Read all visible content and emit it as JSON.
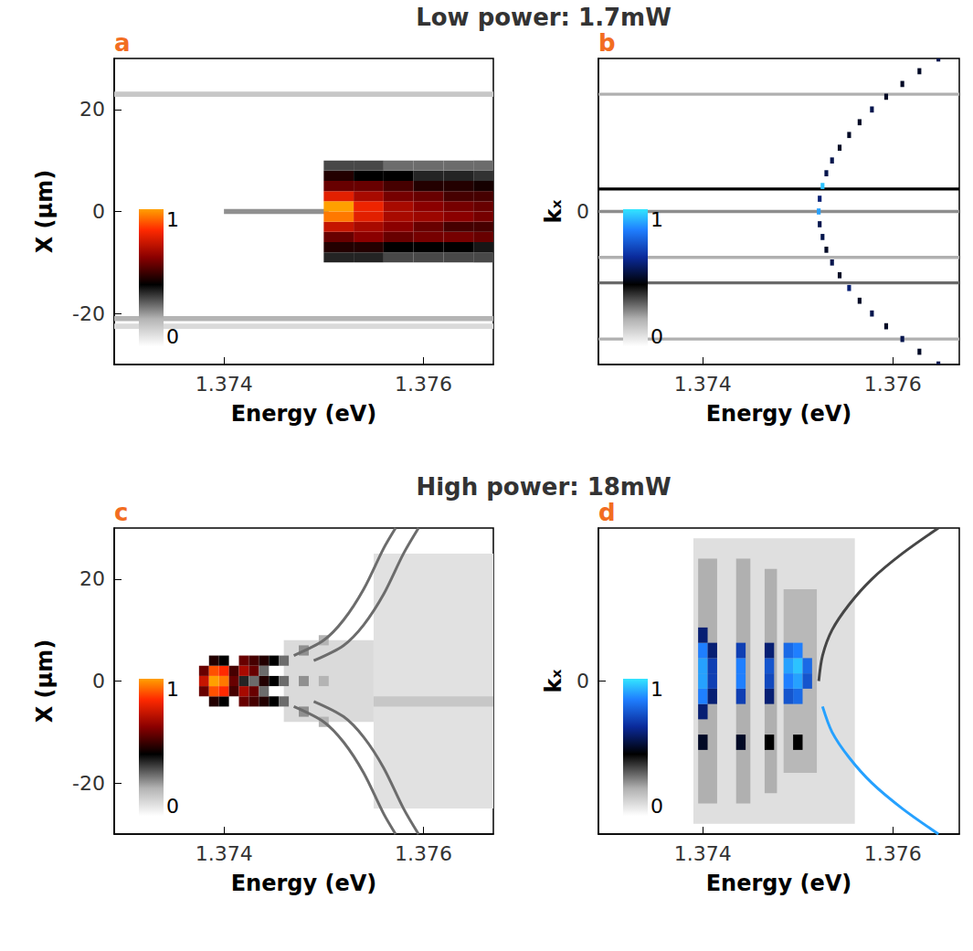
{
  "chart_data": [
    {
      "type": "heatmap",
      "title": "Low power: 1.7mW",
      "label": "a",
      "xlabel": "Energy (eV)",
      "ylabel": "X (µm)",
      "xlim": [
        1.3729,
        1.3767
      ],
      "ylim": [
        -30,
        30
      ],
      "xticks": [
        1.374,
        1.376
      ],
      "yticks": [
        -20,
        0,
        20
      ],
      "color": "red",
      "colorbar": {
        "range": [
          0,
          1
        ],
        "ticks": [
          0,
          1
        ]
      },
      "cell_size": [
        0.0003,
        2
      ],
      "bands": [
        [
          1.3729,
          1.3767,
          22.5,
          23.5,
          0.15
        ],
        [
          1.3729,
          1.3767,
          -21.5,
          -20.5,
          0.2
        ],
        [
          1.3729,
          1.3767,
          -23,
          -22,
          0.1
        ],
        [
          1.374,
          1.37505,
          -0.5,
          0.5,
          0.25
        ]
      ],
      "cells": [
        [
          1.37515,
          -9,
          0.4
        ],
        [
          1.37515,
          -7,
          0.5
        ],
        [
          1.37515,
          -5,
          0.6
        ],
        [
          1.37515,
          -3,
          0.75
        ],
        [
          1.37515,
          -1,
          0.95
        ],
        [
          1.37515,
          1,
          1.0
        ],
        [
          1.37515,
          3,
          0.8
        ],
        [
          1.37515,
          5,
          0.6
        ],
        [
          1.37515,
          7,
          0.5
        ],
        [
          1.37515,
          9,
          0.35
        ],
        [
          1.37545,
          -9,
          0.4
        ],
        [
          1.37545,
          -7,
          0.5
        ],
        [
          1.37545,
          -5,
          0.65
        ],
        [
          1.37545,
          -3,
          0.7
        ],
        [
          1.37545,
          -1,
          0.8
        ],
        [
          1.37545,
          1,
          0.82
        ],
        [
          1.37545,
          3,
          0.7
        ],
        [
          1.37545,
          5,
          0.6
        ],
        [
          1.37545,
          7,
          0.45
        ],
        [
          1.37545,
          9,
          0.35
        ],
        [
          1.37575,
          -9,
          0.35
        ],
        [
          1.37575,
          -7,
          0.45
        ],
        [
          1.37575,
          -5,
          0.6
        ],
        [
          1.37575,
          -3,
          0.65
        ],
        [
          1.37575,
          -1,
          0.7
        ],
        [
          1.37575,
          1,
          0.7
        ],
        [
          1.37575,
          3,
          0.62
        ],
        [
          1.37575,
          5,
          0.55
        ],
        [
          1.37575,
          7,
          0.45
        ],
        [
          1.37575,
          9,
          0.3
        ],
        [
          1.37605,
          -9,
          0.35
        ],
        [
          1.37605,
          -7,
          0.45
        ],
        [
          1.37605,
          -5,
          0.62
        ],
        [
          1.37605,
          -3,
          0.6
        ],
        [
          1.37605,
          -1,
          0.68
        ],
        [
          1.37605,
          1,
          0.65
        ],
        [
          1.37605,
          3,
          0.6
        ],
        [
          1.37605,
          5,
          0.5
        ],
        [
          1.37605,
          7,
          0.4
        ],
        [
          1.37605,
          9,
          0.3
        ],
        [
          1.37635,
          -9,
          0.35
        ],
        [
          1.37635,
          -7,
          0.45
        ],
        [
          1.37635,
          -5,
          0.62
        ],
        [
          1.37635,
          -3,
          0.55
        ],
        [
          1.37635,
          -1,
          0.65
        ],
        [
          1.37635,
          1,
          0.62
        ],
        [
          1.37635,
          3,
          0.55
        ],
        [
          1.37635,
          5,
          0.5
        ],
        [
          1.37635,
          7,
          0.4
        ],
        [
          1.37635,
          9,
          0.3
        ],
        [
          1.37665,
          -9,
          0.35
        ],
        [
          1.37665,
          -7,
          0.42
        ],
        [
          1.37665,
          -5,
          0.6
        ],
        [
          1.37665,
          -3,
          0.55
        ],
        [
          1.37665,
          -1,
          0.62
        ],
        [
          1.37665,
          1,
          0.6
        ],
        [
          1.37665,
          3,
          0.55
        ],
        [
          1.37665,
          5,
          0.48
        ],
        [
          1.37665,
          7,
          0.38
        ],
        [
          1.37665,
          9,
          0.3
        ]
      ],
      "curves": []
    },
    {
      "type": "heatmap",
      "label": "b",
      "xlabel": "Energy (eV)",
      "ylabel": "kₓ",
      "xlim": [
        1.3729,
        1.3767
      ],
      "ylim": [
        -3,
        3
      ],
      "xticks": [
        1.374,
        1.376
      ],
      "yticks": [
        0
      ],
      "color": "blue",
      "colorbar": {
        "range": [
          0,
          1
        ],
        "ticks": [
          0,
          1
        ]
      },
      "cell_size": [
        4e-05,
        0.12
      ],
      "bands": [
        [
          1.3729,
          1.3767,
          2.27,
          2.33,
          0.2
        ],
        [
          1.3729,
          1.3767,
          0.41,
          0.47,
          0.45
        ],
        [
          1.3729,
          1.3767,
          -0.03,
          0.03,
          0.25
        ],
        [
          1.3729,
          1.3767,
          -0.93,
          -0.87,
          0.2
        ],
        [
          1.3729,
          1.3767,
          -1.43,
          -1.37,
          0.3
        ],
        [
          1.3729,
          1.3767,
          -2.53,
          -2.47,
          0.2
        ]
      ],
      "cells": [
        [
          1.37648,
          3,
          0.55
        ],
        [
          1.37628,
          2.75,
          0.5
        ],
        [
          1.3761,
          2.5,
          0.5
        ],
        [
          1.37593,
          2.25,
          0.5
        ],
        [
          1.37578,
          2,
          0.55
        ],
        [
          1.37565,
          1.75,
          0.5
        ],
        [
          1.37554,
          1.5,
          0.5
        ],
        [
          1.37544,
          1.25,
          0.5
        ],
        [
          1.37536,
          1,
          0.55
        ],
        [
          1.3753,
          0.75,
          0.55
        ],
        [
          1.37526,
          0.5,
          0.95
        ],
        [
          1.37523,
          0.25,
          0.6
        ],
        [
          1.37522,
          0,
          0.9
        ],
        [
          1.37523,
          -0.25,
          0.55
        ],
        [
          1.37526,
          -0.5,
          0.55
        ],
        [
          1.3753,
          -0.75,
          0.5
        ],
        [
          1.37536,
          -1,
          0.55
        ],
        [
          1.37544,
          -1.25,
          0.5
        ],
        [
          1.37554,
          -1.5,
          0.6
        ],
        [
          1.37565,
          -1.75,
          0.5
        ],
        [
          1.37578,
          -2,
          0.55
        ],
        [
          1.37593,
          -2.25,
          0.5
        ],
        [
          1.3761,
          -2.5,
          0.55
        ],
        [
          1.37628,
          -2.75,
          0.5
        ],
        [
          1.37648,
          -3,
          0.55
        ]
      ],
      "curves": []
    },
    {
      "type": "heatmap",
      "title": "High power: 18mW",
      "label": "c",
      "xlabel": "Energy (eV)",
      "ylabel": "X (µm)",
      "xlim": [
        1.3729,
        1.3767
      ],
      "ylim": [
        -30,
        30
      ],
      "xticks": [
        1.374,
        1.376
      ],
      "yticks": [
        -20,
        0,
        20
      ],
      "color": "red",
      "colorbar": {
        "range": [
          0,
          1
        ],
        "ticks": [
          0,
          1
        ]
      },
      "cell_size": [
        0.0001,
        2
      ],
      "bands": [
        [
          1.3755,
          1.3767,
          -25,
          25,
          0.08
        ],
        [
          1.3746,
          1.3755,
          -8,
          8,
          0.1
        ],
        [
          1.3755,
          1.3767,
          -5,
          -3,
          0.15
        ]
      ],
      "cells": [
        [
          1.3738,
          -2,
          0.6
        ],
        [
          1.3738,
          0,
          0.75
        ],
        [
          1.3738,
          2,
          0.6
        ],
        [
          1.3739,
          -4,
          0.5
        ],
        [
          1.3739,
          -2,
          0.9
        ],
        [
          1.3739,
          0,
          1.0
        ],
        [
          1.3739,
          2,
          0.9
        ],
        [
          1.3739,
          4,
          0.5
        ],
        [
          1.374,
          -4,
          0.45
        ],
        [
          1.374,
          -2,
          0.85
        ],
        [
          1.374,
          0,
          0.95
        ],
        [
          1.374,
          2,
          0.85
        ],
        [
          1.374,
          4,
          0.45
        ],
        [
          1.3741,
          -2,
          0.55
        ],
        [
          1.3741,
          0,
          0.6
        ],
        [
          1.3741,
          2,
          0.55
        ],
        [
          1.3742,
          -4,
          0.6
        ],
        [
          1.3742,
          -2,
          0.7
        ],
        [
          1.3742,
          0,
          0.4
        ],
        [
          1.3742,
          2,
          0.7
        ],
        [
          1.3742,
          4,
          0.6
        ],
        [
          1.3743,
          -4,
          0.55
        ],
        [
          1.3743,
          -2,
          0.6
        ],
        [
          1.3743,
          0,
          0.3
        ],
        [
          1.3743,
          2,
          0.6
        ],
        [
          1.3743,
          4,
          0.55
        ],
        [
          1.3744,
          -4,
          0.5
        ],
        [
          1.3744,
          -2,
          0.3
        ],
        [
          1.3744,
          0,
          0.5
        ],
        [
          1.3744,
          2,
          0.3
        ],
        [
          1.3744,
          4,
          0.5
        ],
        [
          1.3745,
          -4,
          0.45
        ],
        [
          1.3745,
          0,
          0.45
        ],
        [
          1.3745,
          4,
          0.45
        ],
        [
          1.3746,
          -4,
          0.3
        ],
        [
          1.3746,
          0,
          0.3
        ],
        [
          1.3746,
          4,
          0.3
        ],
        [
          1.3748,
          -6,
          0.25
        ],
        [
          1.3748,
          0,
          0.25
        ],
        [
          1.3748,
          6,
          0.25
        ],
        [
          1.375,
          -8,
          0.2
        ],
        [
          1.375,
          0,
          0.2
        ],
        [
          1.375,
          8,
          0.2
        ]
      ],
      "curves": [
        {
          "intensity": 0.3,
          "points": [
            [
              1.3747,
              5
            ],
            [
              1.375,
              8
            ],
            [
              1.3752,
              12
            ],
            [
              1.3754,
              18
            ],
            [
              1.3756,
              26
            ],
            [
              1.37572,
              30
            ]
          ]
        },
        {
          "intensity": 0.3,
          "points": [
            [
              1.3749,
              4
            ],
            [
              1.3752,
              7
            ],
            [
              1.3754,
              11
            ],
            [
              1.3756,
              17
            ],
            [
              1.3758,
              25
            ],
            [
              1.37595,
              30
            ]
          ]
        },
        {
          "intensity": 0.3,
          "points": [
            [
              1.3747,
              -5
            ],
            [
              1.375,
              -8
            ],
            [
              1.3752,
              -12
            ],
            [
              1.3754,
              -18
            ],
            [
              1.3756,
              -26
            ],
            [
              1.37572,
              -30
            ]
          ]
        },
        {
          "intensity": 0.3,
          "points": [
            [
              1.3749,
              -4
            ],
            [
              1.3752,
              -7
            ],
            [
              1.3754,
              -11
            ],
            [
              1.3756,
              -17
            ],
            [
              1.3758,
              -25
            ],
            [
              1.37595,
              -30
            ]
          ]
        }
      ]
    },
    {
      "type": "heatmap",
      "label": "d",
      "xlabel": "Energy (eV)",
      "ylabel": "kₓ",
      "xlim": [
        1.3729,
        1.3767
      ],
      "ylim": [
        -3,
        3
      ],
      "xticks": [
        1.374,
        1.376
      ],
      "yticks": [
        0
      ],
      "color": "blue",
      "colorbar": {
        "range": [
          0,
          1
        ],
        "ticks": [
          0,
          1
        ]
      },
      "cell_size": [
        0.0001,
        0.3
      ],
      "bands": [
        [
          1.3739,
          1.3756,
          -2.8,
          2.8,
          0.08
        ],
        [
          1.37395,
          1.37415,
          -2.4,
          2.4,
          0.2
        ],
        [
          1.37435,
          1.3745,
          -2.4,
          2.4,
          0.2
        ],
        [
          1.37465,
          1.37478,
          -2.2,
          2.2,
          0.2
        ],
        [
          1.37485,
          1.3752,
          -1.8,
          1.8,
          0.18
        ]
      ],
      "cells": [
        [
          1.374,
          -0.6,
          0.6
        ],
        [
          1.374,
          -0.3,
          0.85
        ],
        [
          1.374,
          0,
          0.9
        ],
        [
          1.374,
          0.3,
          0.9
        ],
        [
          1.374,
          0.6,
          0.85
        ],
        [
          1.374,
          0.9,
          0.6
        ],
        [
          1.3741,
          -0.3,
          0.6
        ],
        [
          1.3741,
          0,
          0.7
        ],
        [
          1.3741,
          0.3,
          0.7
        ],
        [
          1.3741,
          0.6,
          0.6
        ],
        [
          1.3744,
          -0.3,
          0.7
        ],
        [
          1.3744,
          0,
          0.85
        ],
        [
          1.3744,
          0.3,
          0.85
        ],
        [
          1.3744,
          0.6,
          0.7
        ],
        [
          1.3747,
          -0.3,
          0.6
        ],
        [
          1.3747,
          0,
          0.72
        ],
        [
          1.3747,
          0.3,
          0.75
        ],
        [
          1.3747,
          0.6,
          0.6
        ],
        [
          1.3749,
          -0.3,
          0.75
        ],
        [
          1.3749,
          0,
          0.85
        ],
        [
          1.3749,
          0.3,
          0.9
        ],
        [
          1.3749,
          0.6,
          0.8
        ],
        [
          1.375,
          -0.3,
          0.8
        ],
        [
          1.375,
          0,
          0.9
        ],
        [
          1.375,
          0.3,
          0.95
        ],
        [
          1.375,
          0.6,
          0.85
        ],
        [
          1.3751,
          0,
          0.75
        ],
        [
          1.3751,
          0.3,
          0.8
        ],
        [
          1.374,
          -1.2,
          0.5
        ],
        [
          1.3744,
          -1.2,
          0.5
        ],
        [
          1.3747,
          -1.2,
          0.45
        ],
        [
          1.375,
          -1.2,
          0.45
        ]
      ],
      "curves": [
        {
          "intensity": 0.35,
          "points": [
            [
              1.37522,
              0
            ],
            [
              1.37526,
              0.5
            ],
            [
              1.37536,
              1
            ],
            [
              1.37554,
              1.5
            ],
            [
              1.37578,
              2
            ],
            [
              1.3761,
              2.5
            ],
            [
              1.37648,
              3
            ]
          ]
        },
        {
          "intensity": 0.9,
          "points": [
            [
              1.37526,
              -0.5
            ],
            [
              1.37536,
              -1
            ],
            [
              1.37554,
              -1.5
            ],
            [
              1.37578,
              -2
            ],
            [
              1.3761,
              -2.5
            ],
            [
              1.37648,
              -3
            ]
          ]
        }
      ]
    }
  ]
}
